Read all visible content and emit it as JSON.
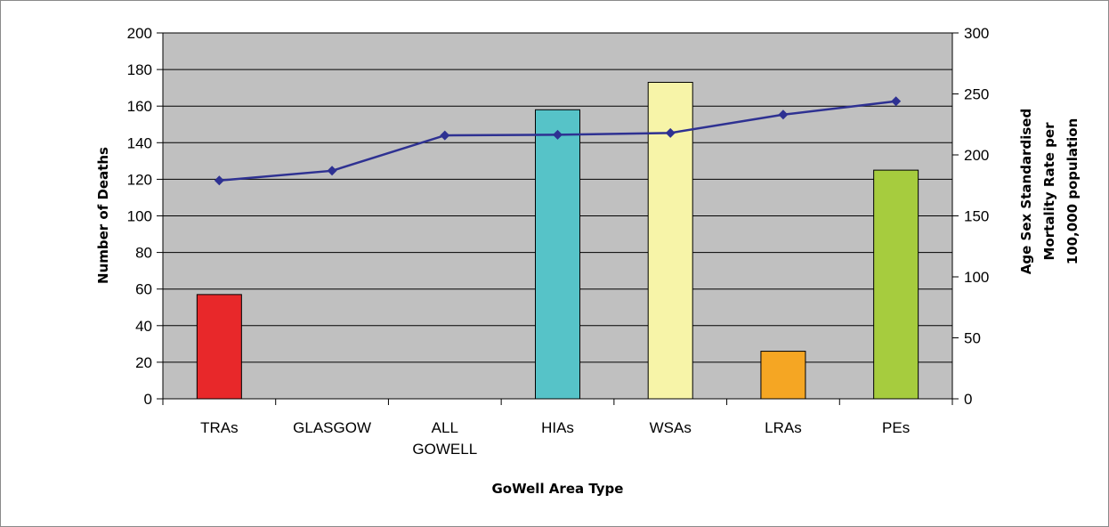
{
  "chart_data": {
    "type": "bar",
    "title": "",
    "xlabel": "GoWell Area Type",
    "ylabel": "Number of Deaths",
    "y2label": [
      "Age Sex Standardised",
      "Mortality Rate per",
      "100,000 population"
    ],
    "categories": [
      [
        "TRAs"
      ],
      [
        "GLASGOW"
      ],
      [
        "ALL",
        "GOWELL"
      ],
      [
        "HIAs"
      ],
      [
        "WSAs"
      ],
      [
        "LRAs"
      ],
      [
        "PEs"
      ]
    ],
    "ylim": [
      0,
      200
    ],
    "y2lim": [
      0,
      300
    ],
    "yticks": [
      0,
      20,
      40,
      60,
      80,
      100,
      120,
      140,
      160,
      180,
      200
    ],
    "y2ticks": [
      0,
      50,
      100,
      150,
      200,
      250,
      300
    ],
    "grid": true,
    "plot_background": "#c0c0c0",
    "series": [
      {
        "type": "bar",
        "axis": "left",
        "values": [
          57,
          null,
          null,
          158,
          173,
          26,
          125
        ],
        "colors": [
          "#e8282a",
          null,
          null,
          "#56c3c8",
          "#f7f4a8",
          "#f5a623",
          "#a6cc3e"
        ]
      },
      {
        "type": "line",
        "axis": "right",
        "color": "#2e3192",
        "marker": "diamond",
        "values": [
          179,
          187,
          216,
          216.5,
          218,
          233,
          244
        ]
      }
    ]
  }
}
